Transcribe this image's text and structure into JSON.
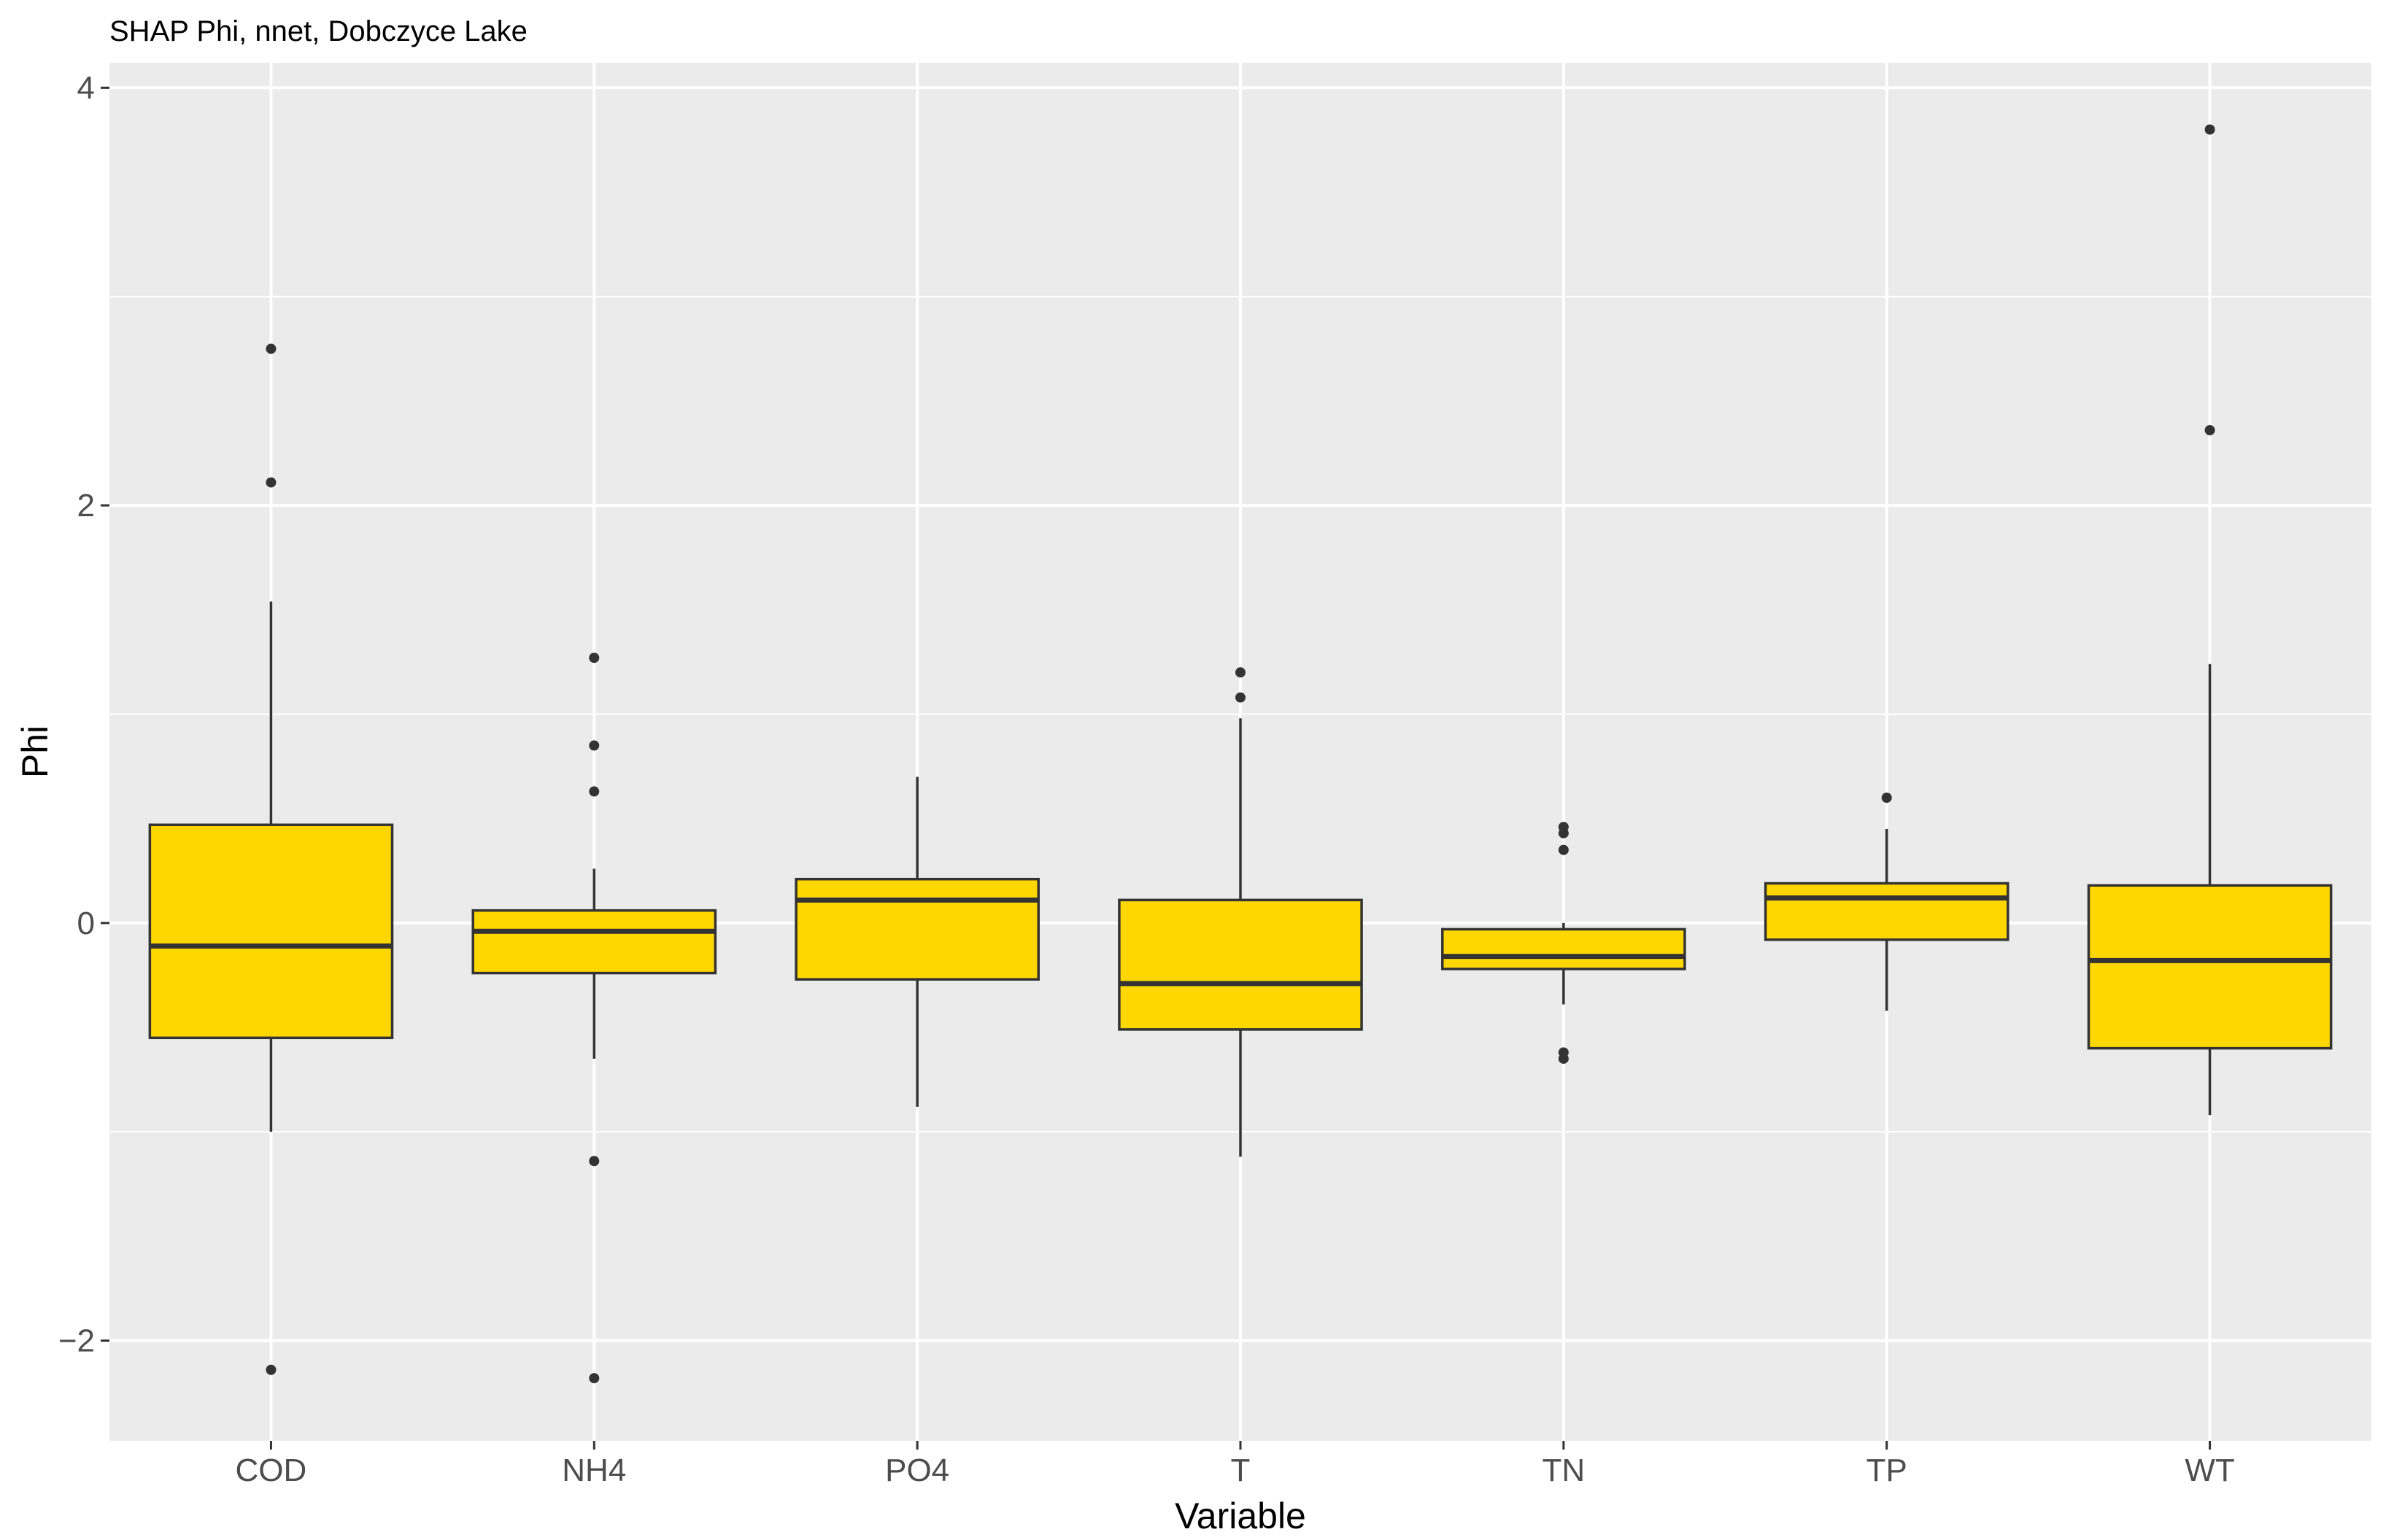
{
  "chart_data": {
    "type": "boxplot",
    "title": "SHAP Phi, nnet, Dobczyce Lake",
    "xlabel": "Variable",
    "ylabel": "Phi",
    "ylim": [
      -2.48,
      4.12
    ],
    "yticks": [
      -2,
      0,
      2,
      4
    ],
    "ytick_labels": [
      "−2",
      "0",
      "2",
      "4"
    ],
    "grid": true,
    "legend": "none",
    "colors": {
      "panel": "#ebebeb",
      "grid": "#ffffff",
      "box_fill": "#ffd700",
      "outline": "#333333",
      "axis_text": "#4d4d4d",
      "title_text": "#000000"
    },
    "categories": [
      "COD",
      "NH4",
      "PO4",
      "T",
      "TN",
      "TP",
      "WT"
    ],
    "boxes": [
      {
        "category": "COD",
        "whisker_low": -1.0,
        "q1": -0.55,
        "median": -0.11,
        "q3": 0.47,
        "whisker_high": 1.54,
        "outliers": [
          2.75,
          2.11,
          -2.14
        ]
      },
      {
        "category": "NH4",
        "whisker_low": -0.65,
        "q1": -0.24,
        "median": -0.04,
        "q3": 0.06,
        "whisker_high": 0.26,
        "outliers": [
          1.27,
          0.85,
          0.63,
          -1.14,
          -2.18
        ]
      },
      {
        "category": "PO4",
        "whisker_low": -0.88,
        "q1": -0.27,
        "median": 0.11,
        "q3": 0.21,
        "whisker_high": 0.7,
        "outliers": []
      },
      {
        "category": "T",
        "whisker_low": -1.12,
        "q1": -0.51,
        "median": -0.29,
        "q3": 0.11,
        "whisker_high": 0.98,
        "outliers": [
          1.2,
          1.08
        ]
      },
      {
        "category": "TN",
        "whisker_low": -0.39,
        "q1": -0.22,
        "median": -0.16,
        "q3": -0.03,
        "whisker_high": 0.0,
        "outliers": [
          0.46,
          0.43,
          0.35,
          -0.62,
          -0.65
        ]
      },
      {
        "category": "TP",
        "whisker_low": -0.42,
        "q1": -0.08,
        "median": 0.12,
        "q3": 0.19,
        "whisker_high": 0.45,
        "outliers": [
          0.6
        ]
      },
      {
        "category": "WT",
        "whisker_low": -0.92,
        "q1": -0.6,
        "median": -0.18,
        "q3": 0.18,
        "whisker_high": 1.24,
        "outliers": [
          3.8,
          2.36
        ]
      }
    ]
  }
}
